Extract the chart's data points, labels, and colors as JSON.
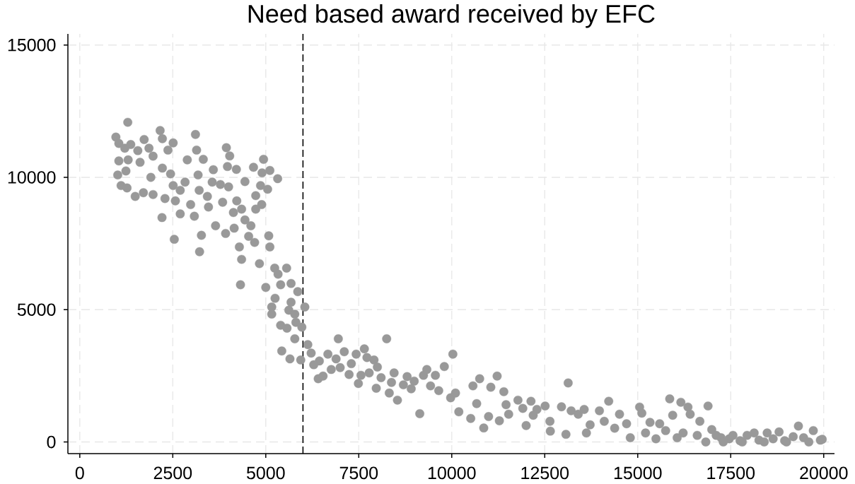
{
  "chart_data": {
    "type": "scatter",
    "title": "Need based award received by EFC",
    "x": [
      1290,
      970,
      1050,
      1210,
      1370,
      1560,
      1730,
      1860,
      2160,
      2220,
      2510,
      2370,
      1050,
      1300,
      1620,
      1970,
      1020,
      1240,
      1110,
      1270,
      1490,
      1710,
      1970,
      1910,
      2220,
      2440,
      2210,
      3110,
      3140,
      2890,
      3320,
      3940,
      4030,
      3590,
      3970,
      4210,
      4670,
      4940,
      5110,
      4900,
      5320,
      2510,
      2830,
      3180,
      3560,
      3780,
      4000,
      4440,
      4860,
      5050,
      2290,
      2570,
      2700,
      2980,
      3210,
      3430,
      3460,
      3840,
      4220,
      4730,
      4890,
      2700,
      3080,
      3650,
      4130,
      4350,
      4730,
      4440,
      4150,
      3920,
      4600,
      4540,
      5080,
      5110,
      4700,
      4290,
      4350,
      4830,
      2540,
      3270,
      3220,
      5240,
      5560,
      5330,
      4320,
      5000,
      5400,
      5680,
      5860,
      5250,
      5680,
      6050,
      5160,
      5160,
      5620,
      5780,
      5400,
      5570,
      5810,
      5970,
      5780,
      5430,
      5650,
      5940,
      6130,
      6950,
      6220,
      6440,
      6290,
      6670,
      6890,
      7110,
      6760,
      7000,
      6410,
      6540,
      8250,
      10030,
      7650,
      7430,
      7720,
      7910,
      7300,
      8000,
      7240,
      7560,
      7780,
      7490,
      8100,
      8380,
      8450,
      7970,
      8320,
      8540,
      8700,
      8800,
      8990,
      8910,
      9240,
      9330,
      9560,
      9430,
      9800,
      9650,
      9970,
      10100,
      9140,
      10190,
      10510,
      10570,
      10750,
      11050,
      11220,
      10670,
      10990,
      10860,
      11280,
      11400,
      11460,
      11780,
      11530,
      12130,
      11910,
      12290,
      12510,
      12190,
      12000,
      12640,
      12650,
      13070,
      13130,
      12950,
      13210,
      13400,
      13560,
      13620,
      13720,
      13970,
      14100,
      14220,
      14380,
      14510,
      14700,
      14800,
      15050,
      15110,
      15210,
      15330,
      15490,
      15590,
      15750,
      15860,
      15940,
      16160,
      16060,
      16220,
      16350,
      16410,
      16600,
      16670,
      16890,
      16830,
      16990,
      17110,
      17240,
      17460,
      17300,
      17560,
      17750,
      17810,
      17940,
      18130,
      18260,
      18480,
      18640,
      18800,
      18950,
      19180,
      19320,
      19460,
      19720,
      19910,
      18400,
      19000,
      19600,
      19960
    ],
    "values": [
      12080,
      11520,
      11280,
      11100,
      11240,
      11010,
      11430,
      11100,
      11770,
      11460,
      11300,
      11030,
      10620,
      10660,
      10570,
      10800,
      10090,
      10240,
      9690,
      9600,
      9280,
      9420,
      9350,
      10000,
      10350,
      10130,
      8480,
      11620,
      11030,
      10660,
      10680,
      11120,
      10810,
      10290,
      10410,
      10300,
      10380,
      10680,
      10260,
      10170,
      9950,
      9690,
      9820,
      10090,
      9820,
      9730,
      9640,
      9840,
      9690,
      9550,
      9200,
      9110,
      9510,
      8970,
      9510,
      9280,
      8880,
      9060,
      9110,
      9310,
      8970,
      8620,
      8530,
      8170,
      8670,
      8800,
      8800,
      8390,
      8080,
      7880,
      8170,
      7770,
      7790,
      7370,
      7540,
      7370,
      6900,
      6740,
      7660,
      7810,
      7190,
      6570,
      6570,
      6340,
      5940,
      5840,
      5940,
      5990,
      5680,
      5430,
      5280,
      5100,
      5100,
      4830,
      4980,
      4830,
      4410,
      4300,
      4520,
      4340,
      3900,
      3440,
      3140,
      3100,
      3680,
      3900,
      3360,
      3060,
      2920,
      3320,
      3140,
      3410,
      2740,
      2810,
      2390,
      2490,
      3900,
      3320,
      3520,
      3320,
      3190,
      3100,
      2960,
      2830,
      2550,
      2520,
      2610,
      2210,
      2430,
      2250,
      2610,
      2030,
      1850,
      1580,
      2160,
      2470,
      2300,
      2010,
      2520,
      2740,
      2520,
      2120,
      2850,
      1940,
      1670,
      1850,
      1070,
      1140,
      890,
      2120,
      2390,
      2070,
      2490,
      1450,
      960,
      530,
      800,
      1900,
      1410,
      1580,
      1050,
      1540,
      1270,
      1230,
      1360,
      1010,
      620,
      780,
      410,
      290,
      2230,
      1330,
      1180,
      1050,
      1230,
      340,
      650,
      1180,
      780,
      1540,
      520,
      1050,
      690,
      160,
      1320,
      1090,
      340,
      740,
      120,
      690,
      430,
      1630,
      1010,
      1500,
      160,
      340,
      1320,
      1050,
      250,
      780,
      1360,
      0,
      470,
      250,
      160,
      120,
      0,
      250,
      50,
      0,
      250,
      340,
      70,
      340,
      120,
      380,
      50,
      200,
      600,
      160,
      430,
      70,
      0,
      0,
      0,
      100
    ],
    "color": "#999999",
    "marker": "circle",
    "xlim": [
      -320,
      20290
    ],
    "ylim": [
      -440,
      15420
    ],
    "xticks": [
      0,
      2500,
      5000,
      7500,
      10000,
      12500,
      15000,
      17500,
      20000
    ],
    "yticks": [
      0,
      5000,
      10000,
      15000
    ],
    "grid": true,
    "ref_lines": [
      {
        "axis": "x",
        "value": 6000,
        "line_style": "dashed",
        "color": "#000000"
      }
    ]
  }
}
